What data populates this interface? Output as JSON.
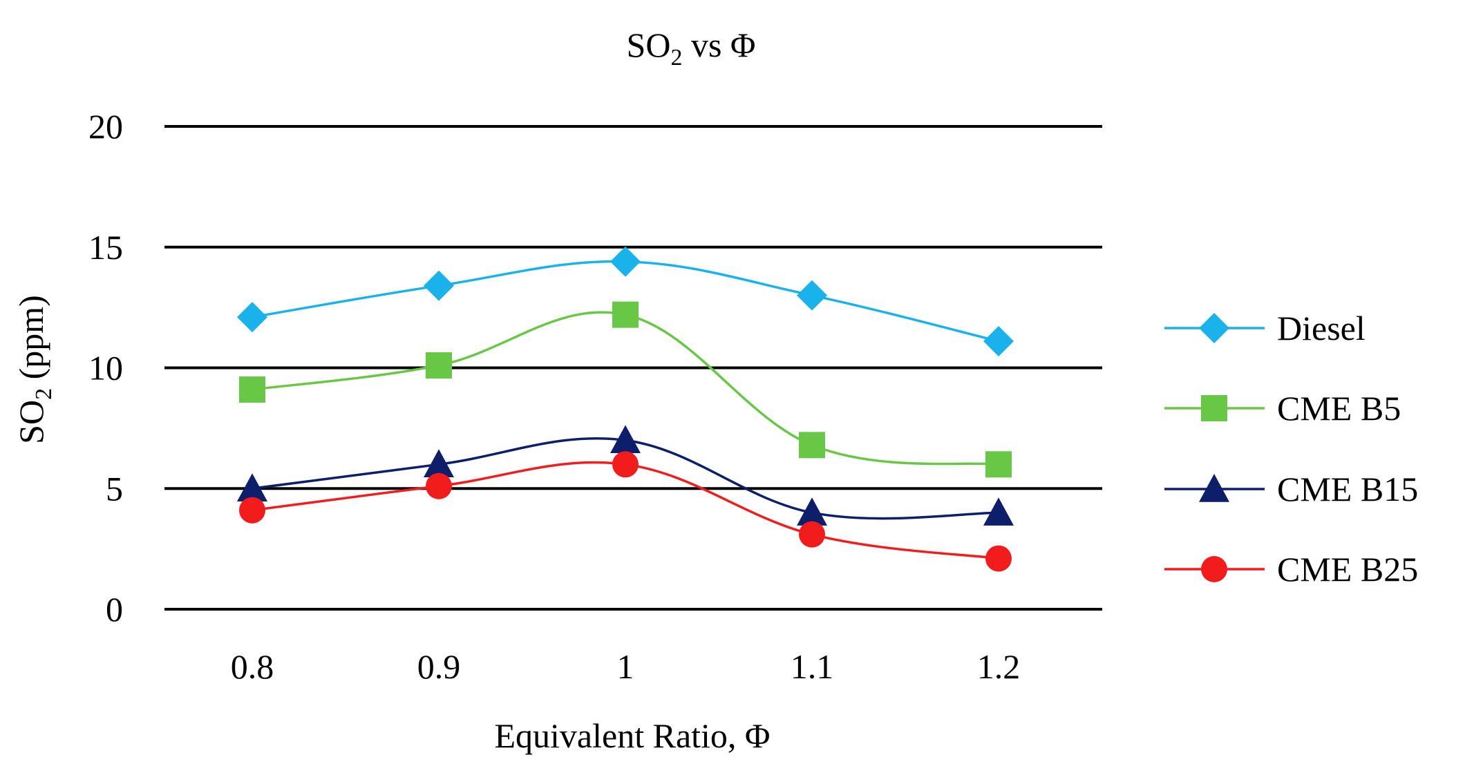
{
  "chart_data": {
    "type": "line",
    "title": "SO",
    "title_subscript": "2",
    "title_suffix": " vs Φ",
    "xlabel": "Equivalent Ratio, Φ",
    "ylabel_prefix": "SO",
    "ylabel_subscript": "2",
    "ylabel_suffix": " (ppm)",
    "x": [
      "0.8",
      "0.9",
      "1",
      "1.1",
      "1.2"
    ],
    "ylim": [
      0,
      20
    ],
    "yticks": [
      "0",
      "5",
      "10",
      "15",
      "20"
    ],
    "grid": true,
    "legend_position": "right",
    "series": [
      {
        "name": "Diesel",
        "values": [
          12.1,
          13.4,
          14.4,
          13.0,
          11.1
        ],
        "color": "#1ab2ea",
        "marker": "diamond"
      },
      {
        "name": "CME B5",
        "values": [
          9.1,
          10.1,
          12.2,
          6.8,
          6.0
        ],
        "color": "#68c846",
        "marker": "square"
      },
      {
        "name": "CME B15",
        "values": [
          5.0,
          6.0,
          7.0,
          4.0,
          4.0
        ],
        "color": "#0d1f6a",
        "marker": "triangle"
      },
      {
        "name": "CME B25",
        "values": [
          4.1,
          5.1,
          6.0,
          3.1,
          2.1
        ],
        "color": "#f21c1c",
        "marker": "circle"
      }
    ]
  }
}
